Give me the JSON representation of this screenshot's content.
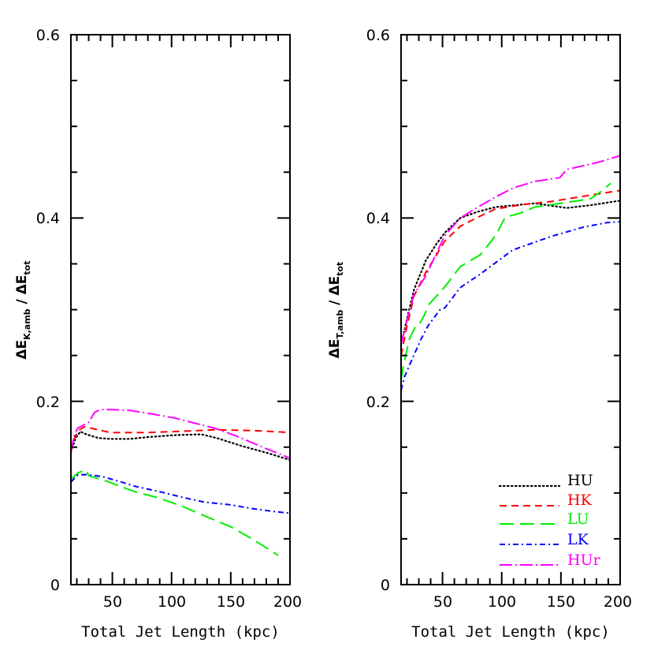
{
  "figure": {
    "panels": [
      {
        "id": "left",
        "ylabel_main": "ΔE",
        "ylabel_sub": "K,amb",
        "ylabel_sep": " / ",
        "ylabel_den_main": "ΔE",
        "ylabel_den_sub": "tot",
        "xlabel": "Total Jet Length (kpc)"
      },
      {
        "id": "right",
        "ylabel_main": "ΔE",
        "ylabel_sub": "T,amb",
        "ylabel_sep": " / ",
        "ylabel_den_main": "ΔE",
        "ylabel_den_sub": "tot",
        "xlabel": "Total Jet Length (kpc)"
      }
    ],
    "x_tick_labels": [
      "50",
      "100",
      "150",
      "200"
    ],
    "y_tick_labels": [
      "0",
      "0.2",
      "0.4",
      "0.6"
    ],
    "legend": [
      {
        "label": "HU",
        "color": "#000000",
        "style": "dotted"
      },
      {
        "label": "HK",
        "color": "#ff0000",
        "style": "short-dash"
      },
      {
        "label": "LU",
        "color": "#00ee00",
        "style": "long-dash"
      },
      {
        "label": "LK",
        "color": "#0000ff",
        "style": "dash-dot"
      },
      {
        "label": "HUr",
        "color": "#ff00ff",
        "style": "long-dash-dot"
      }
    ]
  },
  "chart_data": [
    {
      "type": "line",
      "title": "",
      "xlabel": "Total Jet Length (kpc)",
      "ylabel": "ΔE_K,amb / ΔE_tot",
      "xlim": [
        15,
        200
      ],
      "ylim": [
        0,
        0.6
      ],
      "x_ticks": [
        50,
        100,
        150,
        200
      ],
      "y_ticks": [
        0,
        0.2,
        0.4,
        0.6
      ],
      "grid": false,
      "legend_position": "none",
      "series": [
        {
          "name": "HU",
          "color": "#000000",
          "style": "dotted",
          "x": [
            15,
            19,
            23,
            28,
            38,
            48,
            65,
            80,
            102,
            125,
            138,
            160,
            180,
            200
          ],
          "y": [
            0.145,
            0.16,
            0.167,
            0.164,
            0.16,
            0.159,
            0.159,
            0.161,
            0.163,
            0.164,
            0.16,
            0.151,
            0.144,
            0.136
          ]
        },
        {
          "name": "HK",
          "color": "#ff0000",
          "style": "short-dash",
          "x": [
            15,
            18,
            21,
            26,
            31,
            38,
            48,
            65,
            80,
            102,
            138,
            170,
            200
          ],
          "y": [
            0.145,
            0.16,
            0.168,
            0.172,
            0.171,
            0.169,
            0.166,
            0.166,
            0.166,
            0.167,
            0.169,
            0.168,
            0.166
          ]
        },
        {
          "name": "LU",
          "color": "#00ee00",
          "style": "long-dash",
          "x": [
            15,
            21,
            28,
            30,
            37,
            41,
            55,
            70,
            88,
            110,
            128,
            150,
            168,
            190
          ],
          "y": [
            0.115,
            0.122,
            0.125,
            0.119,
            0.116,
            0.115,
            0.108,
            0.101,
            0.095,
            0.085,
            0.075,
            0.063,
            0.05,
            0.032
          ]
        },
        {
          "name": "LK",
          "color": "#0000ff",
          "style": "dash-dot",
          "x": [
            15,
            21,
            28,
            41,
            55,
            70,
            88,
            110,
            128,
            150,
            168,
            185,
            200
          ],
          "y": [
            0.112,
            0.12,
            0.12,
            0.118,
            0.113,
            0.107,
            0.102,
            0.095,
            0.09,
            0.087,
            0.083,
            0.08,
            0.078
          ]
        },
        {
          "name": "HUr",
          "color": "#ff00ff",
          "style": "long-dash-dot",
          "x": [
            15,
            18,
            21,
            27,
            30,
            35,
            40,
            48,
            65,
            80,
            102,
            120,
            138,
            155,
            175,
            200
          ],
          "y": [
            0.145,
            0.164,
            0.171,
            0.175,
            0.177,
            0.188,
            0.191,
            0.191,
            0.19,
            0.187,
            0.182,
            0.176,
            0.17,
            0.162,
            0.151,
            0.138
          ]
        }
      ]
    },
    {
      "type": "line",
      "title": "",
      "xlabel": "Total Jet Length (kpc)",
      "ylabel": "ΔE_T,amb / ΔE_tot",
      "xlim": [
        15,
        200
      ],
      "ylim": [
        0,
        0.6
      ],
      "x_ticks": [
        50,
        100,
        150,
        200
      ],
      "y_ticks": [
        0,
        0.2,
        0.4,
        0.6
      ],
      "grid": false,
      "legend_position": "lower right",
      "series": [
        {
          "name": "HU",
          "color": "#000000",
          "style": "dotted",
          "x": [
            15,
            20,
            26,
            36,
            45,
            52,
            65,
            80,
            95,
            128,
            155,
            175,
            200
          ],
          "y": [
            0.262,
            0.29,
            0.322,
            0.354,
            0.372,
            0.384,
            0.4,
            0.407,
            0.412,
            0.416,
            0.411,
            0.414,
            0.419
          ]
        },
        {
          "name": "HK",
          "color": "#ff0000",
          "style": "short-dash",
          "x": [
            15,
            20,
            26,
            36,
            45,
            52,
            65,
            80,
            95,
            120,
            142,
            170,
            200
          ],
          "y": [
            0.25,
            0.282,
            0.315,
            0.341,
            0.36,
            0.375,
            0.391,
            0.401,
            0.41,
            0.415,
            0.418,
            0.424,
            0.43
          ]
        },
        {
          "name": "LU",
          "color": "#00ee00",
          "style": "long-dash",
          "x": [
            15,
            17,
            22,
            25,
            27,
            30,
            35,
            38,
            52,
            65,
            82,
            95,
            103,
            115,
            128,
            155,
            175,
            185,
            192
          ],
          "y": [
            0.223,
            0.239,
            0.268,
            0.276,
            0.281,
            0.283,
            0.295,
            0.305,
            0.325,
            0.347,
            0.36,
            0.381,
            0.401,
            0.405,
            0.412,
            0.417,
            0.421,
            0.43,
            0.438
          ]
        },
        {
          "name": "LK",
          "color": "#0000ff",
          "style": "dash-dot",
          "x": [
            15,
            18,
            25,
            32,
            38,
            48,
            52,
            65,
            82,
            102,
            109,
            142,
            169,
            189,
            200
          ],
          "y": [
            0.212,
            0.227,
            0.248,
            0.268,
            0.283,
            0.3,
            0.302,
            0.324,
            0.339,
            0.358,
            0.365,
            0.38,
            0.39,
            0.395,
            0.396
          ]
        },
        {
          "name": "HUr",
          "color": "#ff00ff",
          "style": "long-dash-dot",
          "x": [
            15,
            20,
            26,
            36,
            45,
            52,
            65,
            80,
            95,
            110,
            128,
            149,
            155,
            182,
            200
          ],
          "y": [
            0.262,
            0.288,
            0.317,
            0.337,
            0.362,
            0.381,
            0.4,
            0.412,
            0.423,
            0.433,
            0.44,
            0.444,
            0.453,
            0.461,
            0.468
          ]
        }
      ]
    }
  ]
}
